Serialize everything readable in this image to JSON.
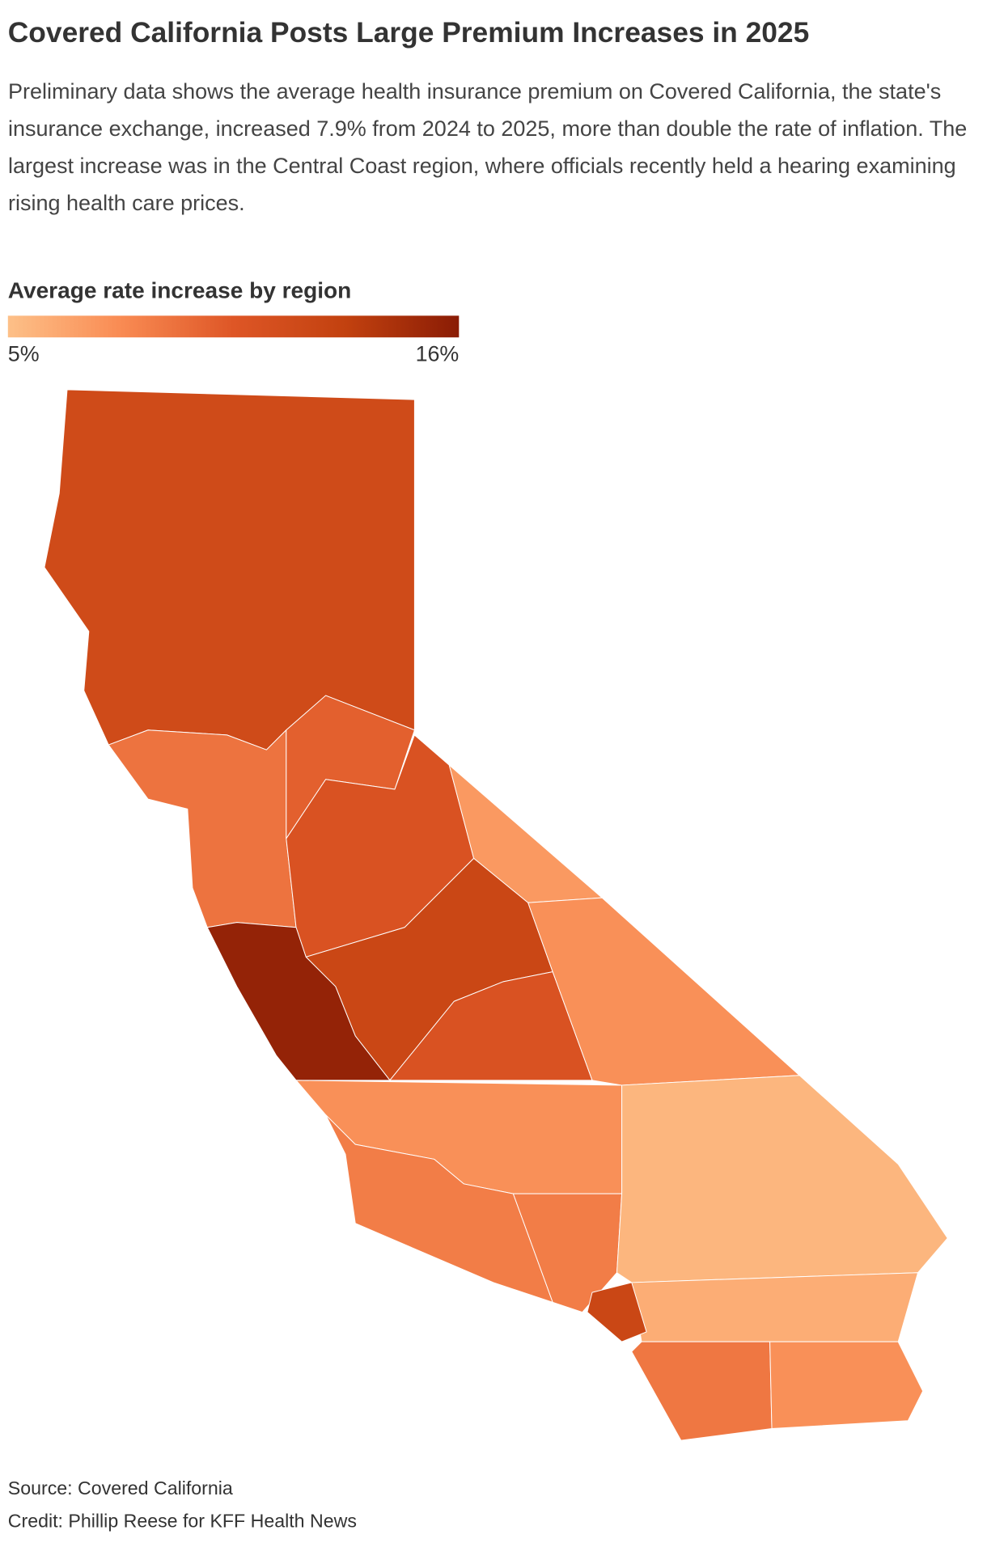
{
  "chart_data": {
    "type": "choropleth",
    "title": "Covered California Posts Large Premium Increases in 2025",
    "subtitle": "Preliminary data shows the average health insurance premium on Covered California, the state's insurance exchange, increased 7.9% from 2024 to 2025, more than double the rate of inflation. The largest increase was in the Central Coast region, where officials recently held a hearing examining rising health care prices.",
    "legend": {
      "title": "Average rate increase by region",
      "ticks": [
        {
          "value": 5,
          "label": "5%"
        },
        {
          "value": 16,
          "label": "16%"
        }
      ],
      "colors": [
        "#fdc088",
        "#f98b53",
        "#de5626",
        "#c2410f",
        "#8a1c05"
      ]
    },
    "values": [
      12,
      9,
      10,
      11,
      7,
      12.5,
      11,
      15.5,
      7.5,
      7.5,
      8.5,
      8.5,
      5.5,
      6,
      12.5,
      8.8,
      7.5
    ],
    "source": "Source: Covered California",
    "credit": "Credit: Phillip Reese for KFF Health News"
  }
}
